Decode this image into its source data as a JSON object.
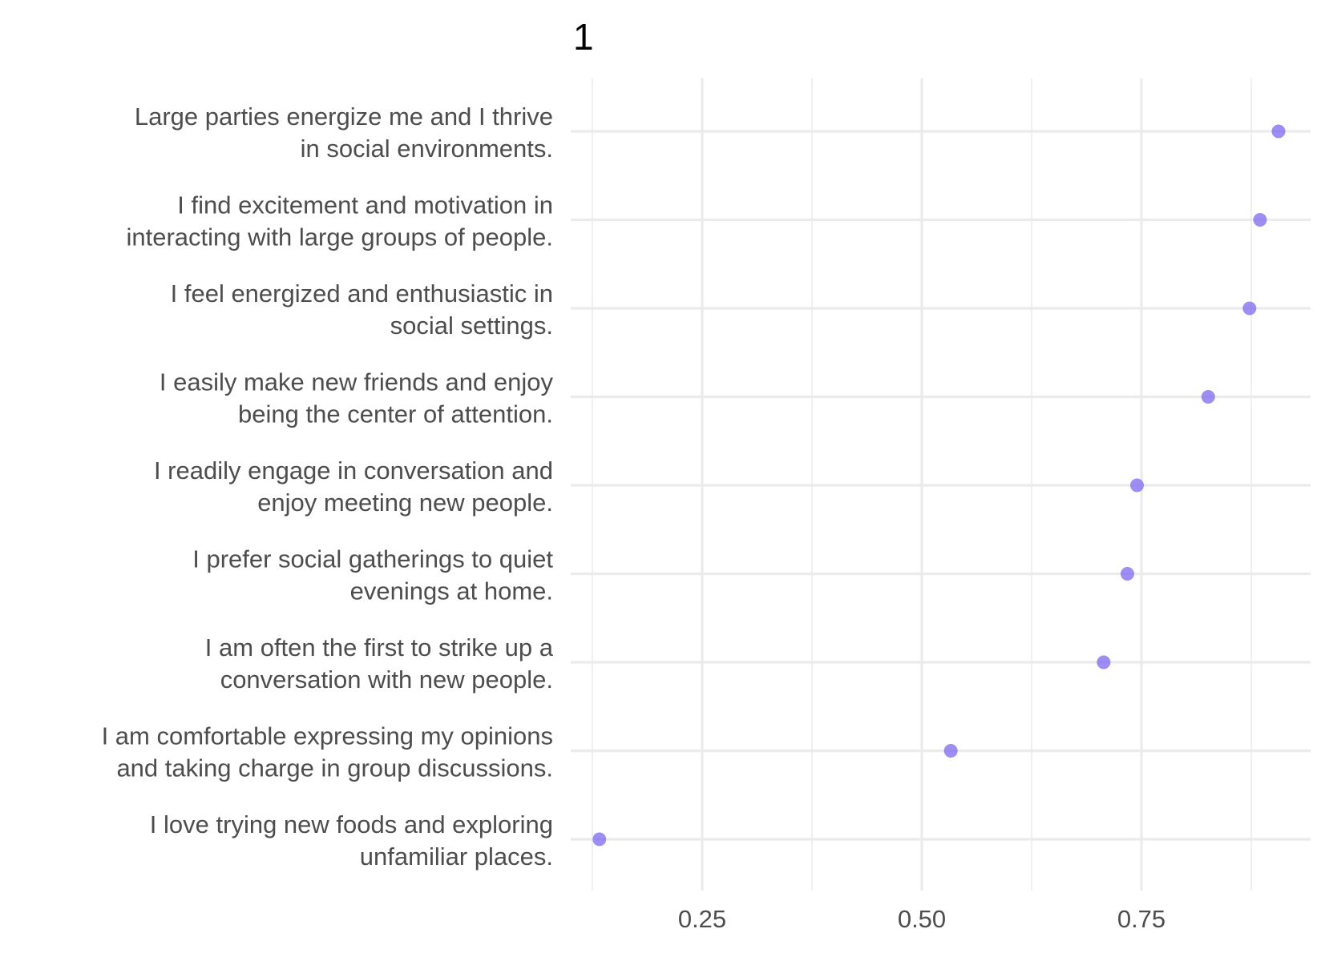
{
  "chart_data": {
    "type": "scatter",
    "title": "1",
    "xlabel": "",
    "ylabel": "",
    "xlim": [
      0.12,
      0.92
    ],
    "x_ticks": [
      "0.25",
      "0.50",
      "0.75"
    ],
    "x_tick_values": [
      0.25,
      0.5,
      0.75
    ],
    "x_minor_grid": [
      0.125,
      0.375,
      0.625,
      0.875
    ],
    "grid": true,
    "point_color": "#7B68EE",
    "categories": [
      [
        "Large parties energize me and I thrive",
        "in social environments."
      ],
      [
        "I find excitement and motivation in",
        "interacting with large groups of people."
      ],
      [
        "I feel energized and enthusiastic in",
        "social settings."
      ],
      [
        "I easily make new friends and enjoy",
        "being the center of attention."
      ],
      [
        "I readily engage in conversation and",
        "enjoy meeting new people."
      ],
      [
        "I prefer social gatherings to quiet",
        "evenings at home."
      ],
      [
        "I am often the first to strike up a",
        "conversation with new people."
      ],
      [
        "I am comfortable expressing my opinions",
        "and taking charge in group discussions."
      ],
      [
        "I love trying new foods and exploring",
        "unfamiliar places."
      ]
    ],
    "values": [
      0.906,
      0.885,
      0.873,
      0.826,
      0.745,
      0.734,
      0.707,
      0.533,
      0.133
    ]
  }
}
